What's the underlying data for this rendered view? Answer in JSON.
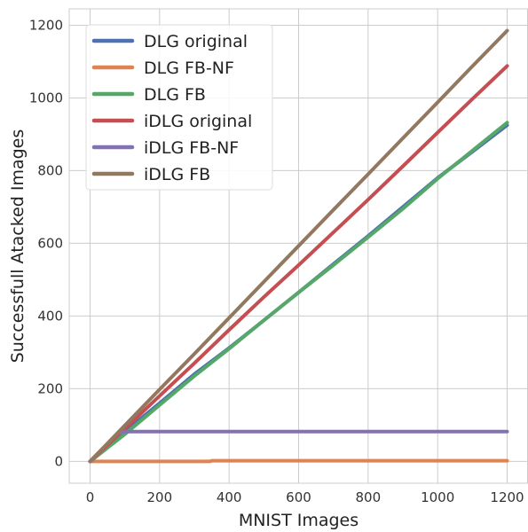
{
  "chart_data": {
    "type": "line",
    "xlabel": "MNIST Images",
    "ylabel": "Successfull Atacked Images",
    "xlim": [
      -60,
      1260
    ],
    "ylim": [
      -60,
      1245
    ],
    "xticks": [
      0,
      200,
      400,
      600,
      800,
      1000,
      1200
    ],
    "yticks": [
      0,
      200,
      400,
      600,
      800,
      1000,
      1200
    ],
    "grid": true,
    "legend_position": "top-left",
    "series": [
      {
        "name": "DLG original",
        "color": "#4c72b0",
        "x": [
          0,
          100,
          200,
          300,
          400,
          500,
          600,
          700,
          800,
          900,
          1000,
          1100,
          1200
        ],
        "y": [
          0,
          82,
          160,
          240,
          312,
          388,
          465,
          543,
          620,
          700,
          780,
          852,
          925
        ]
      },
      {
        "name": "DLG FB-NF",
        "color": "#dd8452",
        "x": [
          0,
          345,
          350,
          1200
        ],
        "y": [
          0,
          0,
          2,
          2
        ]
      },
      {
        "name": "DLG FB",
        "color": "#55a868",
        "x": [
          0,
          100,
          200,
          300,
          400,
          500,
          600,
          700,
          800,
          900,
          1000,
          1100,
          1200
        ],
        "y": [
          0,
          75,
          155,
          235,
          310,
          388,
          465,
          540,
          617,
          695,
          778,
          855,
          932
        ]
      },
      {
        "name": "iDLG original",
        "color": "#c44e52",
        "x": [
          0,
          100,
          200,
          300,
          400,
          500,
          600,
          700,
          800,
          900,
          1000,
          1100,
          1200
        ],
        "y": [
          0,
          90,
          180,
          270,
          362,
          452,
          540,
          630,
          720,
          812,
          905,
          997,
          1088
        ]
      },
      {
        "name": "iDLG FB-NF",
        "color": "#8172b3",
        "x": [
          0,
          80,
          100,
          1200
        ],
        "y": [
          0,
          78,
          82,
          82
        ]
      },
      {
        "name": "iDLG FB",
        "color": "#937860",
        "x": [
          0,
          100,
          200,
          300,
          400,
          500,
          600,
          700,
          800,
          900,
          1000,
          1100,
          1200
        ],
        "y": [
          0,
          99,
          198,
          296,
          395,
          494,
          593,
          692,
          790,
          889,
          988,
          1087,
          1185
        ]
      }
    ]
  }
}
